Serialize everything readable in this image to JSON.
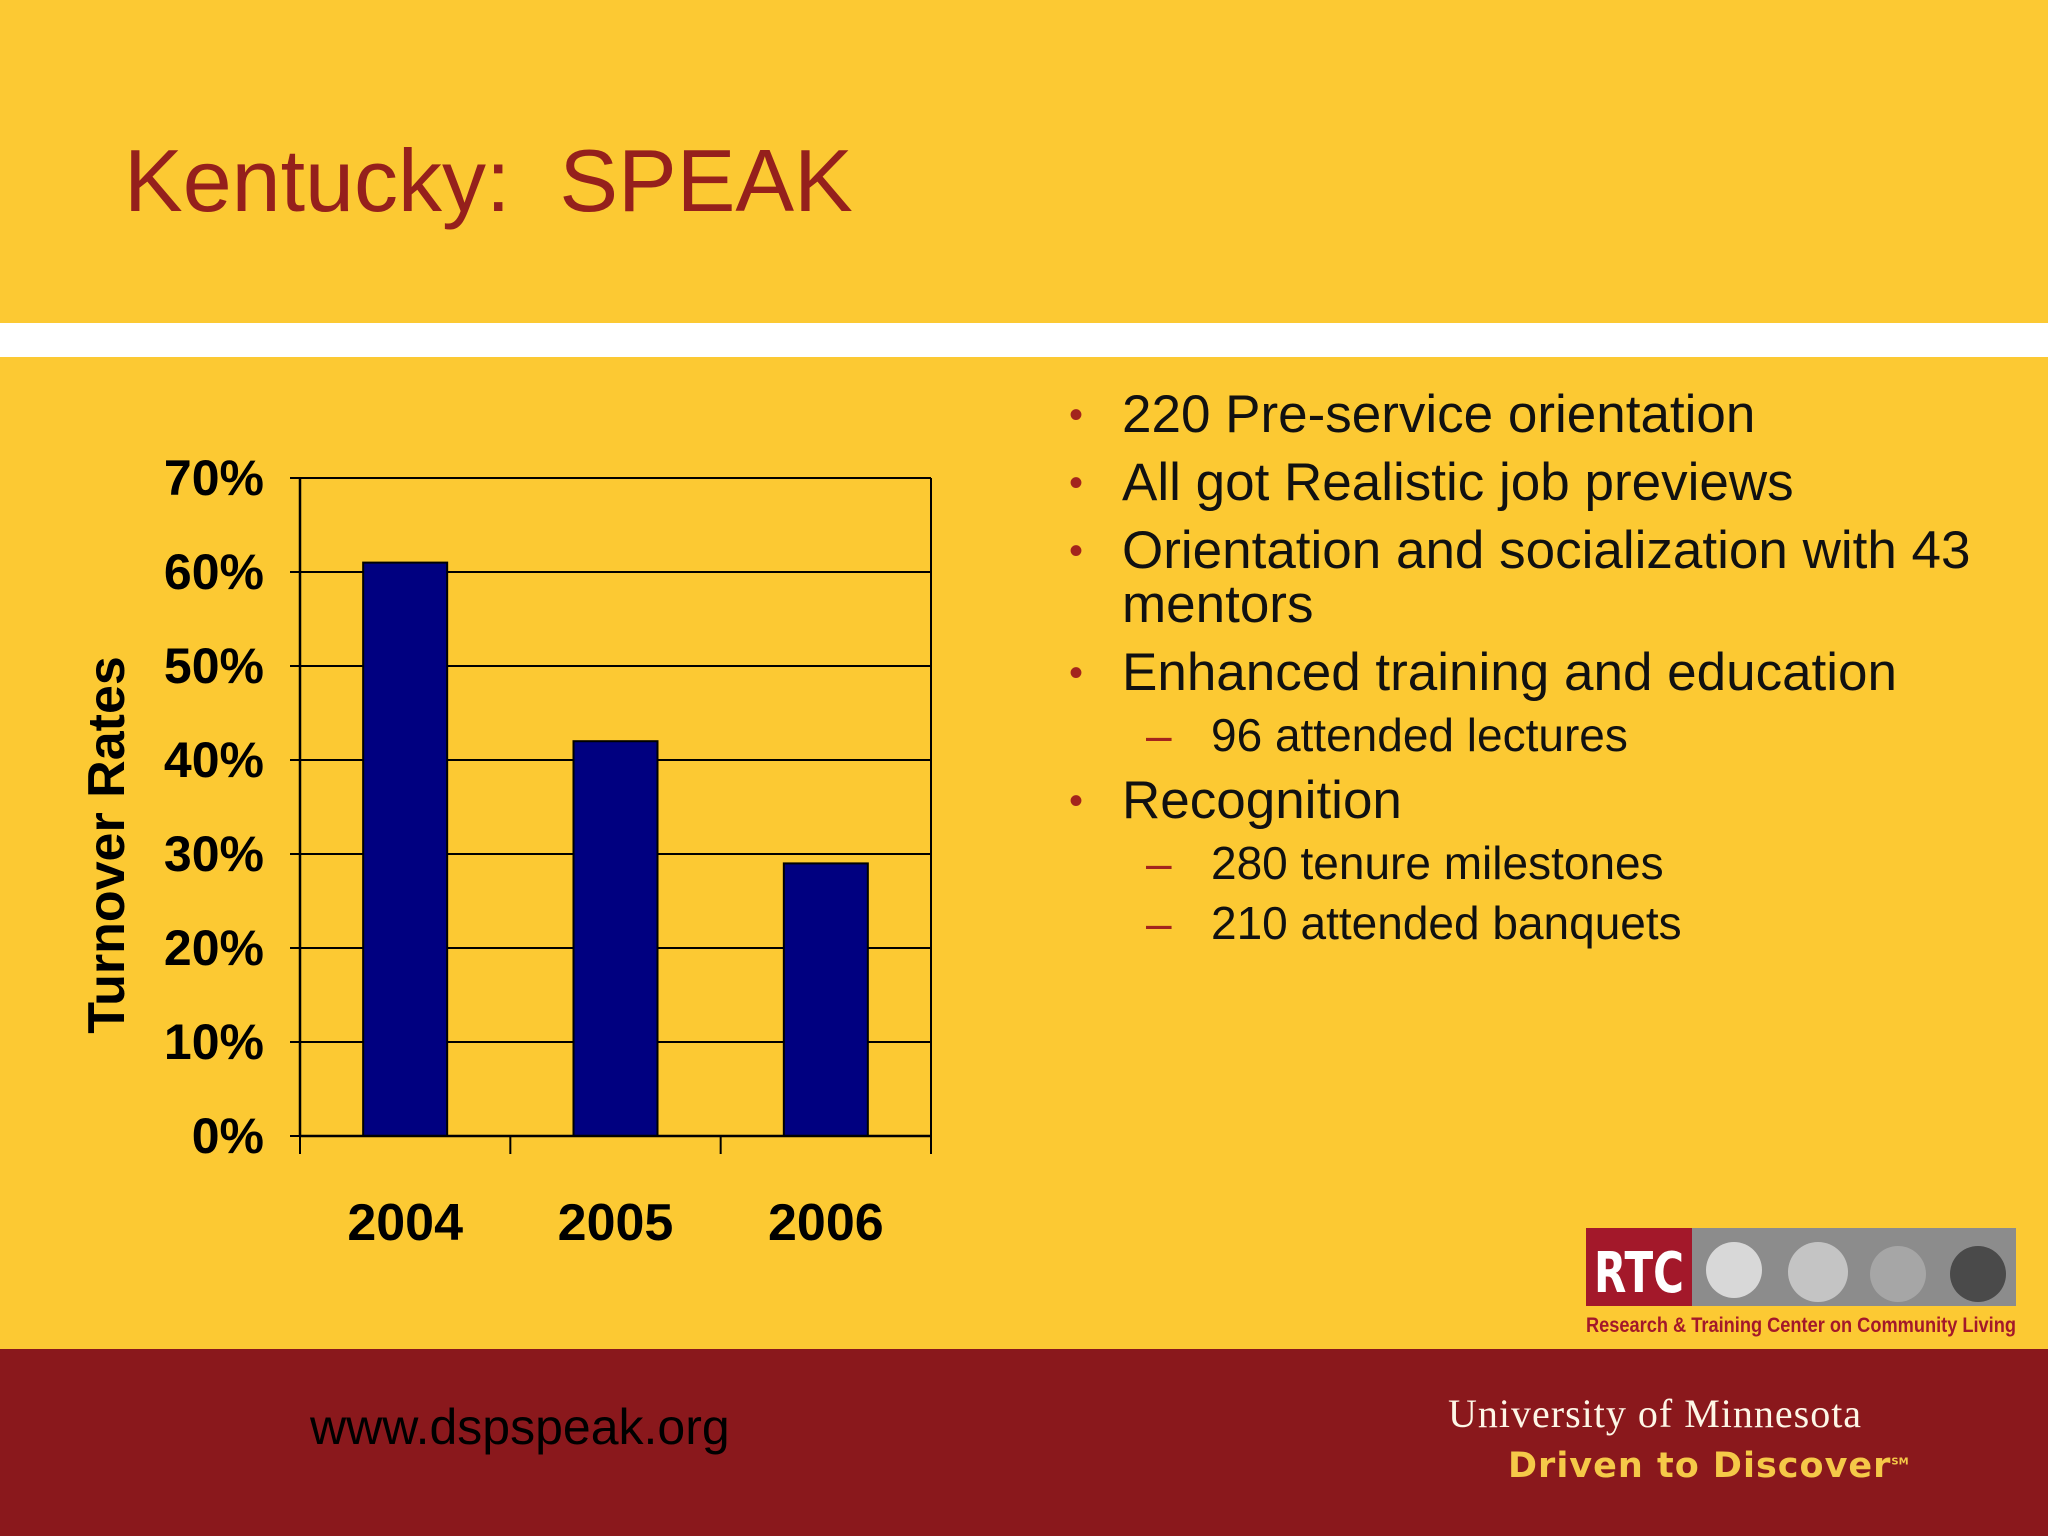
{
  "slide": {
    "title": "Kentucky:  SPEAK",
    "bullets": [
      {
        "level": 1,
        "text": "220 Pre-service orientation"
      },
      {
        "level": 1,
        "text": "All got Realistic job previews"
      },
      {
        "level": 1,
        "text": "Orientation and socialization with 43 mentors"
      },
      {
        "level": 1,
        "text": "Enhanced training and education"
      },
      {
        "level": 2,
        "text": "96 attended lectures"
      },
      {
        "level": 1,
        "text": "Recognition"
      },
      {
        "level": 2,
        "text": "280 tenure milestones"
      },
      {
        "level": 2,
        "text": "210 attended banquets"
      }
    ]
  },
  "footer": {
    "url": "www.dspspeak.org",
    "university": "University of Minnesota",
    "tagline": "Driven to Discover",
    "tagline_mark": "SM"
  },
  "logo": {
    "name": "RTC",
    "caption": "Research & Training Center on Community Living"
  },
  "colors": {
    "background": "#fcc933",
    "title": "#95201c",
    "bar": "#000080",
    "footer": "#8a181c",
    "bullet": "#a3241d"
  },
  "chart_data": {
    "type": "bar",
    "categories": [
      "2004",
      "2005",
      "2006"
    ],
    "values": [
      61,
      42,
      29
    ],
    "ylabel": "Turnover Rates",
    "xlabel": "",
    "ylim": [
      0,
      70
    ],
    "yticks": [
      "0%",
      "10%",
      "20%",
      "30%",
      "40%",
      "50%",
      "60%",
      "70%"
    ],
    "grid": true,
    "legend": "none"
  }
}
